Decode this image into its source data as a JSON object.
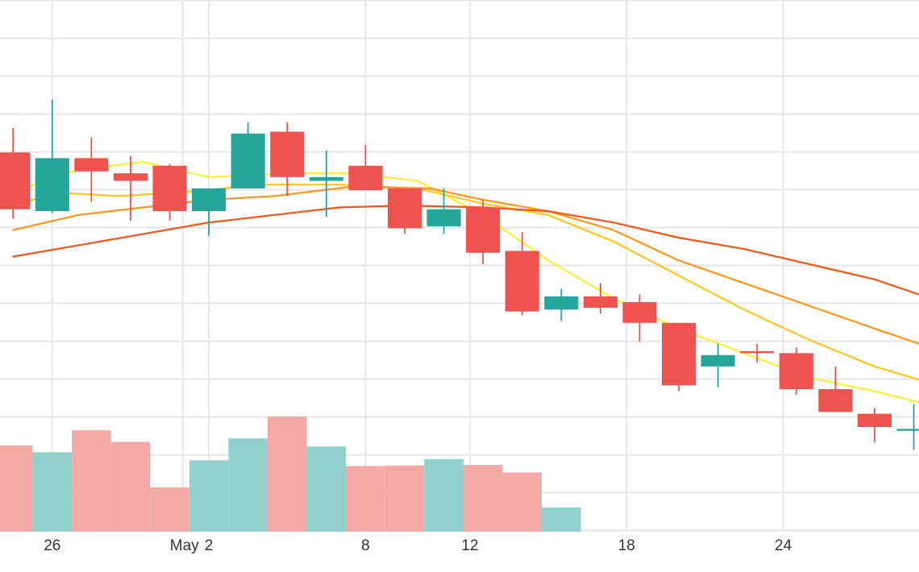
{
  "chart_data": {
    "type": "candlestick",
    "grid": true,
    "legend": "none",
    "x_ticks": [
      {
        "day": 26,
        "label": "26"
      },
      {
        "day": 31,
        "label": "May"
      },
      {
        "day": 32,
        "label": "2"
      },
      {
        "day": 38,
        "label": "8"
      },
      {
        "day": 42,
        "label": "12"
      },
      {
        "day": 48,
        "label": "18"
      },
      {
        "day": 54,
        "label": "24"
      }
    ],
    "x_range": [
      24,
      59.2
    ],
    "price_range": [
      0,
      100
    ],
    "volume_range": [
      0,
      100
    ],
    "colors": {
      "up": "#26a69a",
      "down": "#ef5350",
      "volume_up": "#92d0cd",
      "volume_down": "#f5a9a7",
      "grid": "#e6e6e6",
      "ma_fast": "#ffee33",
      "ma_2": "#ffc61a",
      "ma_3": "#ff9519",
      "ma_4": "#ff5210"
    },
    "candles": [
      {
        "day": 24.5,
        "open": 72.5,
        "high": 79,
        "low": 55,
        "close": 57.5
      },
      {
        "day": 26,
        "open": 57,
        "high": 86.5,
        "low": 56.5,
        "close": 71
      },
      {
        "day": 27.5,
        "open": 71,
        "high": 76.5,
        "low": 59.5,
        "close": 67.5
      },
      {
        "day": 29,
        "open": 67,
        "high": 71.5,
        "low": 54.5,
        "close": 65
      },
      {
        "day": 30.5,
        "open": 69,
        "high": 69.5,
        "low": 54.5,
        "close": 57
      },
      {
        "day": 32,
        "open": 57,
        "high": 63,
        "low": 50.5,
        "close": 63
      },
      {
        "day": 33.5,
        "open": 63,
        "high": 80.5,
        "low": 63,
        "close": 77.5
      },
      {
        "day": 35,
        "open": 78,
        "high": 80.5,
        "low": 61,
        "close": 66
      },
      {
        "day": 36.5,
        "open": 65,
        "high": 73,
        "low": 55.5,
        "close": 66
      },
      {
        "day": 38,
        "open": 69,
        "high": 74.5,
        "low": 62.5,
        "close": 62.5
      },
      {
        "day": 39.5,
        "open": 63,
        "high": 63,
        "low": 51,
        "close": 52.5
      },
      {
        "day": 41,
        "open": 53,
        "high": 63,
        "low": 51,
        "close": 57.5
      },
      {
        "day": 42.5,
        "open": 58,
        "high": 60,
        "low": 43,
        "close": 46
      },
      {
        "day": 44,
        "open": 46.5,
        "high": 51.5,
        "low": 29.5,
        "close": 30.5
      },
      {
        "day": 45.5,
        "open": 31,
        "high": 36.5,
        "low": 28,
        "close": 34.5
      },
      {
        "day": 47,
        "open": 34.5,
        "high": 38,
        "low": 30,
        "close": 31.5
      },
      {
        "day": 48.5,
        "open": 33,
        "high": 35,
        "low": 22.5,
        "close": 27.5
      },
      {
        "day": 50,
        "open": 27.5,
        "high": 27.5,
        "low": 9.5,
        "close": 11
      },
      {
        "day": 51.5,
        "open": 16,
        "high": 22,
        "low": 10.5,
        "close": 19
      },
      {
        "day": 53,
        "open": 20,
        "high": 22,
        "low": 17,
        "close": 19.5
      },
      {
        "day": 54.5,
        "open": 19.5,
        "high": 21,
        "low": 8.5,
        "close": 10
      },
      {
        "day": 56,
        "open": 10,
        "high": 16,
        "low": 4,
        "close": 4
      },
      {
        "day": 57.5,
        "open": 3.5,
        "high": 5,
        "low": -4,
        "close": 0
      },
      {
        "day": 59,
        "open": -1,
        "high": 6,
        "low": -6,
        "close": -0.5
      }
    ],
    "volume": [
      {
        "day": 24.5,
        "value": 75,
        "direction": "down"
      },
      {
        "day": 26,
        "value": 69,
        "direction": "up"
      },
      {
        "day": 27.5,
        "value": 88,
        "direction": "down"
      },
      {
        "day": 29,
        "value": 78,
        "direction": "down"
      },
      {
        "day": 30.5,
        "value": 38.5,
        "direction": "down"
      },
      {
        "day": 32,
        "value": 62,
        "direction": "up"
      },
      {
        "day": 33.5,
        "value": 81,
        "direction": "up"
      },
      {
        "day": 35,
        "value": 100,
        "direction": "down"
      },
      {
        "day": 36.5,
        "value": 74,
        "direction": "up"
      },
      {
        "day": 38,
        "value": 57,
        "direction": "down"
      },
      {
        "day": 39.5,
        "value": 57.5,
        "direction": "down"
      },
      {
        "day": 41,
        "value": 63,
        "direction": "up"
      },
      {
        "day": 42.5,
        "value": 58,
        "direction": "down"
      },
      {
        "day": 44,
        "value": 51.5,
        "direction": "down"
      },
      {
        "day": 45.5,
        "value": 21,
        "direction": "up"
      }
    ],
    "moving_averages": [
      {
        "color_key": "ma_fast",
        "points": [
          [
            24.5,
            62
          ],
          [
            27,
            68
          ],
          [
            29.5,
            70
          ],
          [
            32,
            66
          ],
          [
            35,
            67
          ],
          [
            37.5,
            67
          ],
          [
            40,
            65
          ],
          [
            42.5,
            56
          ],
          [
            45,
            44
          ],
          [
            47.5,
            34
          ],
          [
            50,
            26
          ],
          [
            52.5,
            19.5
          ],
          [
            55,
            13
          ],
          [
            57.5,
            9.5
          ],
          [
            59.2,
            6.5
          ]
        ]
      },
      {
        "color_key": "ma_2",
        "points": [
          [
            24.5,
            58
          ],
          [
            26,
            62
          ],
          [
            28.5,
            61
          ],
          [
            31,
            62
          ],
          [
            34,
            64
          ],
          [
            37,
            64
          ],
          [
            40,
            63
          ],
          [
            42.5,
            59
          ],
          [
            45,
            56
          ],
          [
            47.5,
            49
          ],
          [
            50,
            40
          ],
          [
            52.5,
            31
          ],
          [
            55,
            23
          ],
          [
            57.5,
            16
          ],
          [
            59.2,
            12.5
          ]
        ]
      },
      {
        "color_key": "ma_3",
        "points": [
          [
            24.5,
            52
          ],
          [
            27,
            56
          ],
          [
            29.5,
            58
          ],
          [
            32,
            60
          ],
          [
            34.5,
            61
          ],
          [
            37.5,
            63.5
          ],
          [
            40.5,
            63
          ],
          [
            42.5,
            60
          ],
          [
            45,
            57
          ],
          [
            47.5,
            52
          ],
          [
            50,
            44
          ],
          [
            52.5,
            38
          ],
          [
            55,
            32
          ],
          [
            57.5,
            26
          ],
          [
            59.2,
            22
          ]
        ]
      },
      {
        "color_key": "ma_4",
        "points": [
          [
            24.5,
            45
          ],
          [
            27,
            48
          ],
          [
            29.5,
            51
          ],
          [
            32,
            54
          ],
          [
            34.5,
            56
          ],
          [
            37,
            58
          ],
          [
            39.5,
            58.5
          ],
          [
            42.5,
            58
          ],
          [
            45,
            57
          ],
          [
            47.5,
            54
          ],
          [
            50,
            50
          ],
          [
            52.5,
            47
          ],
          [
            55,
            43
          ],
          [
            57.5,
            39
          ],
          [
            59.2,
            35
          ]
        ]
      }
    ]
  }
}
